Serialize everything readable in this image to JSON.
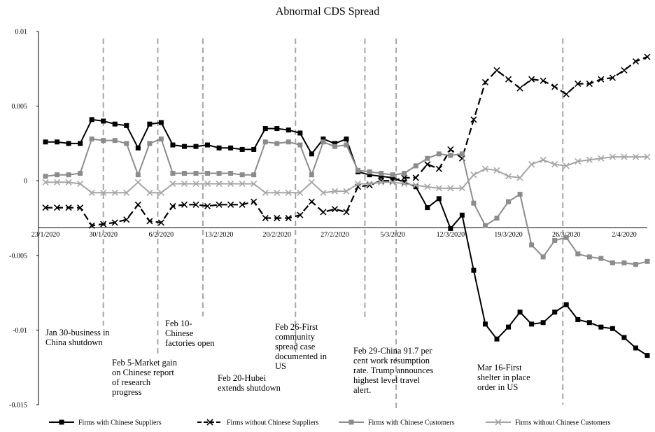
{
  "chart_data": {
    "type": "line",
    "title": "Abnormal CDS Spread",
    "xlabel": "",
    "ylabel": "",
    "ylim": [
      -0.015,
      0.01
    ],
    "yticks": [
      "0.01",
      "0.005",
      "0",
      "-0.005",
      "-0.01",
      "-0.015"
    ],
    "ytick_values": [
      0.01,
      0.005,
      0,
      -0.005,
      -0.01,
      -0.015
    ],
    "xtick_labels": [
      "23/1/2020",
      "30/1/2020",
      "6/2/2020",
      "13/2/2020",
      "20/2/2020",
      "27/2/2020",
      "5/3/2020",
      "12/3/2020",
      "19/3/2020",
      "26/3/2020",
      "2/4/2020"
    ],
    "xtick_index": [
      0,
      5,
      10,
      15,
      20,
      25,
      30,
      35,
      40,
      45,
      50
    ],
    "series": [
      {
        "name": "Firms with Chinese Suppliers",
        "marker": "square",
        "color": "#000000",
        "dash": "solid",
        "values": [
          0.0026,
          0.0026,
          0.0025,
          0.0025,
          0.0041,
          0.004,
          0.0038,
          0.0037,
          0.0022,
          0.0038,
          0.0039,
          0.0024,
          0.0023,
          0.0023,
          0.0024,
          0.0022,
          0.0022,
          0.0021,
          0.0021,
          0.0035,
          0.0035,
          0.0034,
          0.0032,
          0.0018,
          0.0028,
          0.0025,
          0.0028,
          0.0006,
          0.0004,
          0.0003,
          0.0002,
          -0.0001,
          -0.0004,
          -0.0018,
          -0.0012,
          -0.0032,
          -0.0023,
          -0.006,
          -0.0096,
          -0.0106,
          -0.0098,
          -0.0088,
          -0.0096,
          -0.0095,
          -0.0088,
          -0.0083,
          -0.0093,
          -0.0095,
          -0.0098,
          -0.0099,
          -0.0105,
          -0.0112,
          -0.0117
        ]
      },
      {
        "name": "Firms without Chinese Suppliers",
        "marker": "x",
        "color": "#000000",
        "dash": "dashed",
        "values": [
          -0.0018,
          -0.0018,
          -0.0018,
          -0.0018,
          -0.003,
          -0.0029,
          -0.0028,
          -0.0026,
          -0.0016,
          -0.0027,
          -0.0028,
          -0.0017,
          -0.0016,
          -0.0016,
          -0.0017,
          -0.0016,
          -0.0016,
          -0.0016,
          -0.0014,
          -0.0025,
          -0.0025,
          -0.0025,
          -0.0023,
          -0.0014,
          -0.0021,
          -0.0019,
          -0.0021,
          -0.0004,
          -0.0003,
          0.0,
          0.0,
          0.0002,
          0.0002,
          0.0011,
          0.0008,
          0.0021,
          0.0015,
          0.0041,
          0.0066,
          0.0074,
          0.0068,
          0.0062,
          0.0068,
          0.0067,
          0.0063,
          0.0058,
          0.0065,
          0.0065,
          0.0068,
          0.0069,
          0.0074,
          0.008,
          0.0083
        ]
      },
      {
        "name": "Firms with Chinese Customers",
        "marker": "square",
        "color": "#8c8c8c",
        "dash": "solid",
        "values": [
          0.0003,
          0.0004,
          0.0004,
          0.0005,
          0.0028,
          0.0027,
          0.0027,
          0.0025,
          0.0004,
          0.0025,
          0.0028,
          0.0005,
          0.0005,
          0.0005,
          0.0005,
          0.0005,
          0.0005,
          0.0004,
          0.0004,
          0.0026,
          0.0025,
          0.0026,
          0.0024,
          0.0004,
          0.0026,
          0.0023,
          0.0024,
          0.0007,
          0.0006,
          0.0005,
          0.0004,
          0.0005,
          0.001,
          0.0015,
          0.0018,
          0.0017,
          0.0018,
          -0.0015,
          -0.003,
          -0.0025,
          -0.0014,
          -0.0009,
          -0.0043,
          -0.0051,
          -0.004,
          -0.0038,
          -0.0049,
          -0.0051,
          -0.0052,
          -0.0055,
          -0.0055,
          -0.0056,
          -0.0054
        ]
      },
      {
        "name": "Firms without Chinese Customers",
        "marker": "x",
        "color": "#a6a6a6",
        "dash": "solid",
        "values": [
          -0.0001,
          -0.0001,
          -0.0001,
          -0.0002,
          -0.0008,
          -0.0008,
          -0.0008,
          -0.0008,
          -0.0001,
          -0.0008,
          -0.0008,
          -0.0002,
          -0.0002,
          -0.0002,
          -0.0002,
          -0.0002,
          -0.0002,
          -0.0002,
          -0.0002,
          -0.0008,
          -0.0008,
          -0.0008,
          -0.0008,
          -0.0001,
          -0.0008,
          -0.0007,
          -0.0007,
          -0.0002,
          -0.0002,
          -0.0001,
          -0.0001,
          -0.0002,
          -0.0003,
          -0.0004,
          -0.0005,
          -0.0005,
          -0.0005,
          0.0004,
          0.0008,
          0.0007,
          0.0003,
          0.0002,
          0.0011,
          0.0014,
          0.0011,
          0.001,
          0.0013,
          0.0014,
          0.0015,
          0.0016,
          0.0016,
          0.0016,
          0.0016
        ]
      }
    ],
    "event_lines": [
      {
        "index": 5,
        "label": "Jan 30-business in China shutdown"
      },
      {
        "index": 9.7,
        "label": "Feb 5-Market gain on Chinese report of research progress"
      },
      {
        "index": 13.6,
        "label": "Feb 10-Chinese factories open"
      },
      {
        "index": 21.6,
        "label": "Feb 20-Hubei extends shutdown"
      },
      {
        "index": 27.6,
        "label": "Feb 26-First community spread case documented in US"
      },
      {
        "index": 30.3,
        "label": "Feb 29-China 91.7 per cent work resumption rate. Trump announces highest level travel alert."
      },
      {
        "index": 44.7,
        "label": "Mar 16-First shelter in place order in US"
      }
    ],
    "legend_position": "bottom"
  },
  "annotations": [
    [
      "Jan 30-business in",
      "China shutdown"
    ],
    [
      "Feb 5-Market gain",
      "on Chinese report",
      "of research",
      "progress"
    ],
    [
      "Feb 10-",
      "Chinese",
      "factories open"
    ],
    [
      "Feb 20-Hubei",
      "extends shutdown"
    ],
    [
      "Feb 26-First",
      "community",
      "spread case",
      "documented in",
      "US"
    ],
    [
      "Feb 29-China 91.7 per",
      "cent work resumption",
      "rate. Trump announces",
      "highest level travel",
      "alert."
    ],
    [
      "Mar 16-First",
      "shelter in place",
      "order in US"
    ]
  ]
}
